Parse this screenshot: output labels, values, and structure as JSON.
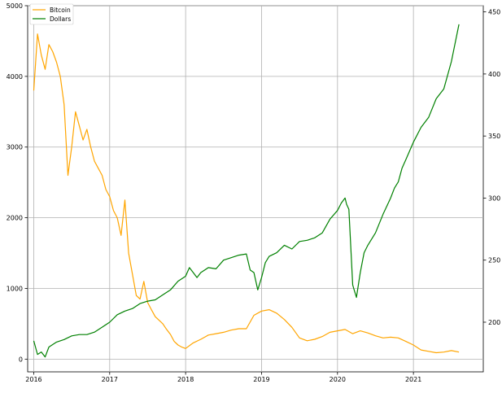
{
  "chart_data": {
    "type": "line",
    "title": "",
    "xlabel": "",
    "ylabel_left": "",
    "ylabel_right": "",
    "x_ticks": [
      "2016",
      "2017",
      "2018",
      "2019",
      "2020",
      "2021"
    ],
    "x_tick_values": [
      2016,
      2017,
      2018,
      2019,
      2020,
      2021
    ],
    "xlim": [
      2015.92,
      2021.92
    ],
    "y_left_ticks": [
      "0",
      "1000",
      "2000",
      "3000",
      "4000",
      "5000"
    ],
    "y_left_tick_values": [
      0,
      1000,
      2000,
      3000,
      4000,
      5000
    ],
    "ylim_left": [
      -180,
      5000
    ],
    "y_right_ticks": [
      "200",
      "250",
      "300",
      "350",
      "400",
      "450"
    ],
    "y_right_tick_values": [
      200,
      250,
      300,
      350,
      400,
      450
    ],
    "ylim_right": [
      160,
      455
    ],
    "grid": true,
    "legend_position": "top-left",
    "series": [
      {
        "name": "Bitcoin",
        "axis": "left",
        "color": "#ffa500",
        "x": [
          2016.0,
          2016.05,
          2016.1,
          2016.15,
          2016.2,
          2016.25,
          2016.3,
          2016.35,
          2016.4,
          2016.45,
          2016.5,
          2016.55,
          2016.6,
          2016.65,
          2016.7,
          2016.75,
          2016.8,
          2016.85,
          2016.9,
          2016.95,
          2017.0,
          2017.05,
          2017.1,
          2017.15,
          2017.2,
          2017.25,
          2017.3,
          2017.35,
          2017.4,
          2017.45,
          2017.5,
          2017.55,
          2017.6,
          2017.65,
          2017.7,
          2017.75,
          2017.8,
          2017.85,
          2017.9,
          2017.95,
          2018.0,
          2018.1,
          2018.2,
          2018.3,
          2018.4,
          2018.5,
          2018.6,
          2018.7,
          2018.8,
          2018.9,
          2019.0,
          2019.1,
          2019.2,
          2019.3,
          2019.4,
          2019.5,
          2019.6,
          2019.7,
          2019.8,
          2019.9,
          2020.0,
          2020.1,
          2020.2,
          2020.3,
          2020.4,
          2020.5,
          2020.6,
          2020.7,
          2020.8,
          2020.9,
          2021.0,
          2021.1,
          2021.2,
          2021.3,
          2021.4,
          2021.5,
          2021.6
        ],
        "values": [
          3800,
          4600,
          4300,
          4100,
          4450,
          4350,
          4200,
          4000,
          3600,
          2600,
          3000,
          3500,
          3300,
          3100,
          3250,
          3000,
          2800,
          2700,
          2600,
          2400,
          2300,
          2100,
          2000,
          1750,
          2250,
          1500,
          1200,
          900,
          850,
          1100,
          800,
          700,
          600,
          550,
          500,
          420,
          350,
          250,
          200,
          170,
          150,
          230,
          280,
          340,
          360,
          380,
          410,
          430,
          430,
          620,
          680,
          700,
          650,
          560,
          450,
          300,
          260,
          280,
          320,
          380,
          400,
          420,
          360,
          400,
          370,
          330,
          300,
          310,
          300,
          250,
          200,
          130,
          110,
          90,
          100,
          120,
          100
        ]
      },
      {
        "name": "Dollars",
        "axis": "right",
        "color": "#008000",
        "x": [
          2016.0,
          2016.05,
          2016.1,
          2016.15,
          2016.2,
          2016.3,
          2016.4,
          2016.5,
          2016.6,
          2016.7,
          2016.8,
          2016.9,
          2017.0,
          2017.1,
          2017.2,
          2017.3,
          2017.4,
          2017.5,
          2017.6,
          2017.7,
          2017.8,
          2017.9,
          2018.0,
          2018.05,
          2018.1,
          2018.15,
          2018.2,
          2018.3,
          2018.4,
          2018.5,
          2018.6,
          2018.7,
          2018.8,
          2018.85,
          2018.9,
          2018.95,
          2019.0,
          2019.05,
          2019.1,
          2019.2,
          2019.3,
          2019.4,
          2019.5,
          2019.6,
          2019.7,
          2019.8,
          2019.9,
          2020.0,
          2020.05,
          2020.1,
          2020.12,
          2020.15,
          2020.2,
          2020.22,
          2020.25,
          2020.3,
          2020.35,
          2020.4,
          2020.5,
          2020.6,
          2020.7,
          2020.75,
          2020.8,
          2020.85,
          2020.9,
          2021.0,
          2021.1,
          2021.2,
          2021.3,
          2021.4,
          2021.5,
          2021.6
        ],
        "values": [
          185,
          174,
          176,
          172,
          180,
          184,
          186,
          189,
          190,
          190,
          192,
          196,
          200,
          206,
          209,
          211,
          215,
          217,
          218,
          222,
          226,
          233,
          237,
          244,
          240,
          236,
          240,
          244,
          243,
          250,
          252,
          254,
          255,
          242,
          240,
          226,
          236,
          248,
          253,
          256,
          262,
          259,
          265,
          266,
          268,
          272,
          283,
          290,
          296,
          300,
          295,
          291,
          230,
          226,
          220,
          240,
          256,
          262,
          272,
          287,
          300,
          308,
          313,
          324,
          331,
          345,
          357,
          365,
          380,
          388,
          410,
          440
        ]
      }
    ]
  }
}
